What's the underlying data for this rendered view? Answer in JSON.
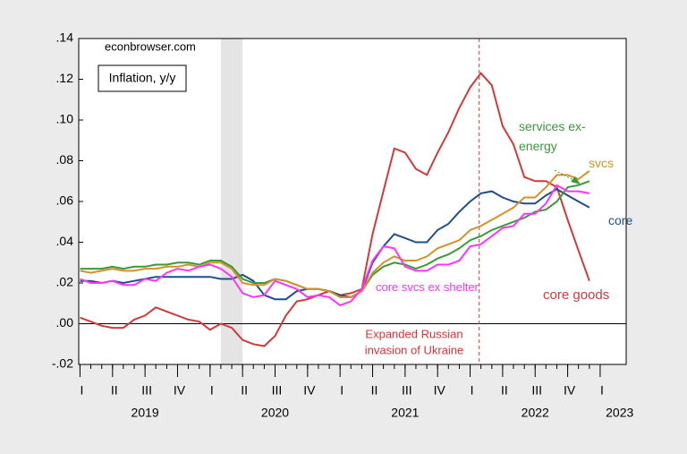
{
  "chart_data": {
    "type": "line",
    "source": "econbrowser.com",
    "title": "Inflation, y/y",
    "x": [
      2019.0,
      2019.083,
      2019.167,
      2019.25,
      2019.333,
      2019.417,
      2019.5,
      2019.583,
      2019.667,
      2019.75,
      2019.833,
      2019.917,
      2020.0,
      2020.083,
      2020.167,
      2020.25,
      2020.333,
      2020.417,
      2020.5,
      2020.583,
      2020.667,
      2020.75,
      2020.833,
      2020.917,
      2021.0,
      2021.083,
      2021.167,
      2021.25,
      2021.333,
      2021.417,
      2021.5,
      2021.583,
      2021.667,
      2021.75,
      2021.833,
      2021.917,
      2022.0,
      2022.083,
      2022.167,
      2022.25,
      2022.333,
      2022.417,
      2022.5,
      2022.583,
      2022.667,
      2022.75,
      2022.833,
      2022.917
    ],
    "series": [
      {
        "name": "core goods",
        "color": "#d23a3a",
        "values": [
          0.003,
          0.001,
          -0.001,
          -0.002,
          -0.002,
          0.002,
          0.004,
          0.008,
          0.006,
          0.004,
          0.002,
          0.001,
          -0.003,
          0.0,
          -0.002,
          -0.008,
          -0.01,
          -0.011,
          -0.006,
          0.004,
          0.011,
          0.012,
          0.014,
          0.016,
          0.014,
          0.015,
          0.017,
          0.044,
          0.065,
          0.086,
          0.084,
          0.076,
          0.073,
          0.084,
          0.094,
          0.106,
          0.116,
          0.123,
          0.117,
          0.097,
          0.088,
          0.072,
          0.07,
          0.07,
          0.067,
          0.051,
          0.036,
          0.021
        ]
      },
      {
        "name": "core",
        "color": "#1f4e8c",
        "values": [
          0.021,
          0.021,
          0.02,
          0.021,
          0.02,
          0.021,
          0.022,
          0.023,
          0.023,
          0.023,
          0.023,
          0.023,
          0.023,
          0.022,
          0.022,
          0.024,
          0.021,
          0.014,
          0.012,
          0.012,
          0.016,
          0.017,
          0.017,
          0.016,
          0.014,
          0.013,
          0.016,
          0.03,
          0.038,
          0.044,
          0.042,
          0.04,
          0.04,
          0.046,
          0.049,
          0.055,
          0.06,
          0.064,
          0.065,
          0.062,
          0.06,
          0.059,
          0.059,
          0.063,
          0.066,
          0.063,
          0.06,
          0.057
        ]
      },
      {
        "name": "services ex-energy",
        "color": "#3a9a3a",
        "values": [
          0.027,
          0.027,
          0.027,
          0.028,
          0.027,
          0.028,
          0.028,
          0.029,
          0.029,
          0.03,
          0.03,
          0.029,
          0.031,
          0.031,
          0.028,
          0.022,
          0.02,
          0.02,
          0.022,
          0.021,
          0.019,
          0.017,
          0.017,
          0.016,
          0.013,
          0.013,
          0.016,
          0.024,
          0.028,
          0.03,
          0.029,
          0.027,
          0.029,
          0.032,
          0.034,
          0.037,
          0.041,
          0.043,
          0.046,
          0.048,
          0.05,
          0.052,
          0.055,
          0.056,
          0.06,
          0.067,
          0.068,
          0.07
        ]
      },
      {
        "name": "svcs",
        "color": "#d4922a",
        "values": [
          0.026,
          0.025,
          0.026,
          0.027,
          0.026,
          0.026,
          0.027,
          0.027,
          0.028,
          0.028,
          0.029,
          0.028,
          0.03,
          0.03,
          0.027,
          0.02,
          0.019,
          0.019,
          0.022,
          0.021,
          0.019,
          0.017,
          0.017,
          0.016,
          0.013,
          0.013,
          0.016,
          0.025,
          0.03,
          0.033,
          0.031,
          0.031,
          0.033,
          0.037,
          0.039,
          0.041,
          0.046,
          0.048,
          0.051,
          0.054,
          0.057,
          0.062,
          0.062,
          0.067,
          0.073,
          0.073,
          0.071,
          0.075
        ]
      },
      {
        "name": "core svcs ex shelter",
        "color": "#ff33ff",
        "values": [
          0.022,
          0.02,
          0.02,
          0.021,
          0.019,
          0.019,
          0.022,
          0.021,
          0.025,
          0.027,
          0.026,
          0.028,
          0.029,
          0.027,
          0.023,
          0.015,
          0.013,
          0.014,
          0.021,
          0.019,
          0.017,
          0.013,
          0.014,
          0.013,
          0.009,
          0.011,
          0.017,
          0.031,
          0.038,
          0.037,
          0.028,
          0.026,
          0.026,
          0.029,
          0.029,
          0.031,
          0.038,
          0.039,
          0.043,
          0.047,
          0.048,
          0.054,
          0.054,
          0.059,
          0.068,
          0.065,
          0.065,
          0.064
        ]
      }
    ],
    "xlim": [
      2018.99,
      2023.2
    ],
    "ylim": [
      -0.02,
      0.14
    ],
    "yticks": [
      {
        "value": -0.02,
        "label": "-.02"
      },
      {
        "value": 0.0,
        "label": ".00"
      },
      {
        "value": 0.02,
        "label": ".02"
      },
      {
        "value": 0.04,
        "label": ".04"
      },
      {
        "value": 0.06,
        "label": ".06"
      },
      {
        "value": 0.08,
        "label": ".08"
      },
      {
        "value": 0.1,
        "label": ".10"
      },
      {
        "value": 0.12,
        "label": ".12"
      },
      {
        "value": 0.14,
        "label": ".14"
      }
    ],
    "xticks": [
      {
        "value": 2019.0,
        "label": "I"
      },
      {
        "value": 2019.25,
        "label": "II"
      },
      {
        "value": 2019.5,
        "label": "III"
      },
      {
        "value": 2019.75,
        "label": "IV"
      },
      {
        "value": 2020.0,
        "label": "I"
      },
      {
        "value": 2020.25,
        "label": "II"
      },
      {
        "value": 2020.5,
        "label": "III"
      },
      {
        "value": 2020.75,
        "label": "IV"
      },
      {
        "value": 2021.0,
        "label": "I"
      },
      {
        "value": 2021.25,
        "label": "II"
      },
      {
        "value": 2021.5,
        "label": "III"
      },
      {
        "value": 2021.75,
        "label": "IV"
      },
      {
        "value": 2022.0,
        "label": "I"
      },
      {
        "value": 2022.25,
        "label": "II"
      },
      {
        "value": 2022.5,
        "label": "III"
      },
      {
        "value": 2022.75,
        "label": "IV"
      },
      {
        "value": 2023.0,
        "label": "I"
      }
    ],
    "year_labels": [
      {
        "value": 2019.5,
        "label": "2019"
      },
      {
        "value": 2020.5,
        "label": "2020"
      },
      {
        "value": 2021.5,
        "label": "2021"
      },
      {
        "value": 2022.5,
        "label": "2022"
      },
      {
        "value": 2023.15,
        "label": "2023"
      }
    ],
    "shaded_regions": [
      [
        2020.083,
        2020.25
      ]
    ],
    "zero_line": 0.0,
    "event_line": {
      "value": 2022.07,
      "color": "#e03030",
      "text_lines": [
        "Expanded Russian",
        "invasion of Ukraine"
      ]
    },
    "grid": false
  }
}
